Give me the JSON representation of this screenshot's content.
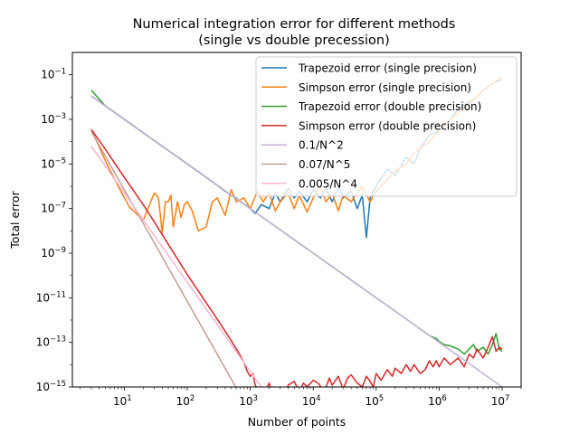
{
  "chart_data": {
    "type": "line",
    "title_line1": "Numerical integration error for different methods",
    "title_line2": "(single vs double precession)",
    "xlabel": "Number of points",
    "ylabel": "Total error",
    "xscale": "log",
    "yscale": "log",
    "xlim": [
      1.5,
      20000000
    ],
    "ylim": [
      1e-15,
      1
    ],
    "grid": false,
    "legend_placement": "top-right",
    "x_ticks": [
      {
        "value": 10,
        "base": "10",
        "exp": "1"
      },
      {
        "value": 100,
        "base": "10",
        "exp": "2"
      },
      {
        "value": 1000,
        "base": "10",
        "exp": "3"
      },
      {
        "value": 10000,
        "base": "10",
        "exp": "4"
      },
      {
        "value": 100000,
        "base": "10",
        "exp": "5"
      },
      {
        "value": 1000000,
        "base": "10",
        "exp": "6"
      },
      {
        "value": 10000000,
        "base": "10",
        "exp": "7"
      }
    ],
    "y_ticks": [
      {
        "value": 0.1,
        "base": "10",
        "exp": "−1"
      },
      {
        "value": 0.001,
        "base": "10",
        "exp": "−3"
      },
      {
        "value": 1e-05,
        "base": "10",
        "exp": "−5"
      },
      {
        "value": 1e-07,
        "base": "10",
        "exp": "−7"
      },
      {
        "value": 1e-09,
        "base": "10",
        "exp": "−9"
      },
      {
        "value": 1e-11,
        "base": "10",
        "exp": "−11"
      },
      {
        "value": 1e-13,
        "base": "10",
        "exp": "−13"
      },
      {
        "value": 1e-15,
        "base": "10",
        "exp": "−15"
      }
    ],
    "series": [
      {
        "name": "Trapezoid error (single precision)",
        "color": "#1f77b4",
        "x": [
          3,
          5,
          10,
          20,
          40,
          60,
          80,
          100,
          150,
          200,
          300,
          400,
          500,
          600,
          700,
          800,
          1000,
          1200,
          1500,
          2000,
          2500,
          3000,
          4000,
          5000,
          6000,
          8000,
          10000,
          13000,
          16000,
          20000,
          25000,
          30000,
          40000,
          50000,
          60000,
          70000,
          80000,
          100000,
          150000,
          200000,
          300000,
          400000,
          500000,
          700000,
          1000000,
          1500000,
          2000000,
          3000000,
          4000000,
          5000000,
          7000000,
          10000000
        ],
        "y": [
          0.011,
          0.004,
          0.001,
          0.00025,
          6.3e-05,
          2.8e-05,
          1.6e-05,
          1e-05,
          4.5e-06,
          2.5e-06,
          1.1e-06,
          6e-07,
          4e-07,
          3e-07,
          2e-07,
          1.6e-07,
          1e-07,
          6e-08,
          1.5e-07,
          1e-07,
          5e-07,
          2e-07,
          8e-07,
          3e-07,
          6e-07,
          2e-07,
          7e-07,
          3e-07,
          8e-07,
          2e-07,
          1e-06,
          3e-07,
          6e-07,
          1e-07,
          4e-07,
          5e-09,
          3e-07,
          1e-06,
          6e-06,
          3e-06,
          2e-05,
          1e-05,
          5e-05,
          0.0002,
          0.0003,
          0.001,
          0.003,
          0.006,
          0.01,
          0.02,
          0.04,
          0.06
        ]
      },
      {
        "name": "Simpson error (single precision)",
        "color": "#ff7f0e",
        "x": [
          3,
          5,
          8,
          12,
          20,
          30,
          35,
          40,
          45,
          50,
          55,
          60,
          70,
          80,
          90,
          100,
          120,
          150,
          200,
          250,
          300,
          400,
          500,
          600,
          800,
          1000,
          1300,
          1600,
          2000,
          2500,
          3000,
          4000,
          5000,
          6000,
          8000,
          10000,
          13000,
          16000,
          20000,
          25000,
          30000,
          40000,
          50000,
          60000,
          80000,
          100000,
          150000,
          200000,
          300000,
          400000,
          500000,
          700000,
          1000000,
          1500000,
          2000000,
          3000000,
          5000000,
          7000000,
          10000000
        ],
        "y": [
          0.00035,
          1.4e-05,
          1e-06,
          1.2e-07,
          3e-08,
          5e-07,
          3e-07,
          8e-09,
          2e-07,
          2e-07,
          4e-07,
          1.5e-08,
          2e-07,
          4e-08,
          1.5e-07,
          2e-07,
          8e-08,
          1e-08,
          1.5e-08,
          2e-07,
          3e-07,
          5e-08,
          7e-07,
          2e-07,
          3e-07,
          1e-07,
          6e-07,
          2e-07,
          5e-07,
          8e-08,
          2e-07,
          5e-07,
          1e-07,
          4e-07,
          7e-08,
          3e-07,
          1e-06,
          2e-07,
          5e-07,
          8e-08,
          4e-07,
          2e-07,
          5e-07,
          1e-06,
          2e-07,
          6e-07,
          2e-06,
          5e-06,
          1e-05,
          3e-05,
          5e-05,
          0.0001,
          0.0003,
          0.001,
          0.002,
          0.005,
          0.02,
          0.04,
          0.08
        ]
      },
      {
        "name": "Trapezoid error (double precision)",
        "color": "#2ca02c",
        "x": [
          3,
          5,
          10,
          20,
          50,
          100,
          200,
          500,
          1000,
          2000,
          5000,
          10000,
          20000,
          50000,
          100000,
          200000,
          500000,
          700000,
          900000,
          1000000,
          1200000,
          1500000,
          2000000,
          2500000,
          3000000,
          3500000,
          4000000,
          5000000,
          6000000,
          7000000,
          8000000,
          9000000,
          10000000
        ],
        "y": [
          0.02,
          0.004,
          0.001,
          0.00025,
          4e-05,
          1e-05,
          2.5e-06,
          4e-07,
          1e-07,
          2.5e-08,
          4e-09,
          1e-09,
          2.5e-10,
          4e-11,
          1e-11,
          2.5e-12,
          4e-13,
          2e-13,
          1.5e-13,
          1.1e-13,
          8e-14,
          7e-14,
          5e-14,
          3e-14,
          5e-14,
          8e-14,
          4e-14,
          6e-14,
          3e-14,
          8e-14,
          2.5e-13,
          5e-14,
          4e-14
        ]
      },
      {
        "name": "Simpson error (double precision)",
        "color": "#d62728",
        "x": [
          3,
          5,
          10,
          20,
          30,
          50,
          100,
          200,
          300,
          500,
          700,
          800,
          900,
          1000,
          1100,
          1200,
          1500,
          1800,
          2000,
          2500,
          3000,
          3500,
          4000,
          5000,
          6000,
          7000,
          8000,
          10000,
          12000,
          15000,
          18000,
          20000,
          25000,
          30000,
          35000,
          40000,
          50000,
          60000,
          70000,
          80000,
          90000,
          100000,
          120000,
          150000,
          180000,
          200000,
          250000,
          300000,
          350000,
          400000,
          500000,
          600000,
          700000,
          800000,
          900000,
          1000000,
          1200000,
          1500000,
          2000000,
          2500000,
          3000000,
          3500000,
          4000000,
          5000000,
          6000000,
          7000000,
          8000000,
          9000000,
          10000000
        ],
        "y": [
          0.00035,
          4.6e-05,
          2.5e-06,
          1.5e-07,
          2.5e-08,
          2.5e-09,
          1.1e-10,
          6e-12,
          1.1e-12,
          1.2e-13,
          2.5e-14,
          1.2e-14,
          5e-15,
          3e-15,
          4e-15,
          1.2e-15,
          4e-16,
          8e-16,
          1.5e-15,
          2e-16,
          8e-16,
          3e-16,
          1.2e-15,
          1.8e-15,
          6e-16,
          1.5e-15,
          1e-15,
          2e-15,
          1.5e-15,
          6e-16,
          2.5e-15,
          1.2e-15,
          3e-15,
          8e-16,
          2.5e-15,
          3.5e-15,
          1.5e-15,
          1e-15,
          3e-15,
          1.8e-15,
          1e-15,
          4e-15,
          2e-15,
          6e-15,
          3e-15,
          7e-15,
          4e-15,
          1e-14,
          5e-15,
          1e-14,
          4e-15,
          6e-15,
          1.5e-14,
          8e-15,
          1.5e-14,
          8e-15,
          2e-14,
          1e-14,
          2e-14,
          8e-15,
          3e-14,
          2e-14,
          5e-14,
          2e-14,
          6e-14,
          1.8e-13,
          4e-14,
          6e-14,
          5e-14
        ]
      },
      {
        "name": "0.1/N^2",
        "color": "#c5b0d5",
        "formula": "0.1/N^2",
        "x": [
          3,
          10000000
        ]
      },
      {
        "name": "0.07/N^5",
        "color": "#c49c94",
        "formula": "0.07/N^5",
        "x": [
          3,
          2000
        ]
      },
      {
        "name": "0.005/N^4",
        "color": "#f7b6d2",
        "formula": "0.005/N^4",
        "x": [
          3,
          3000
        ]
      }
    ]
  }
}
